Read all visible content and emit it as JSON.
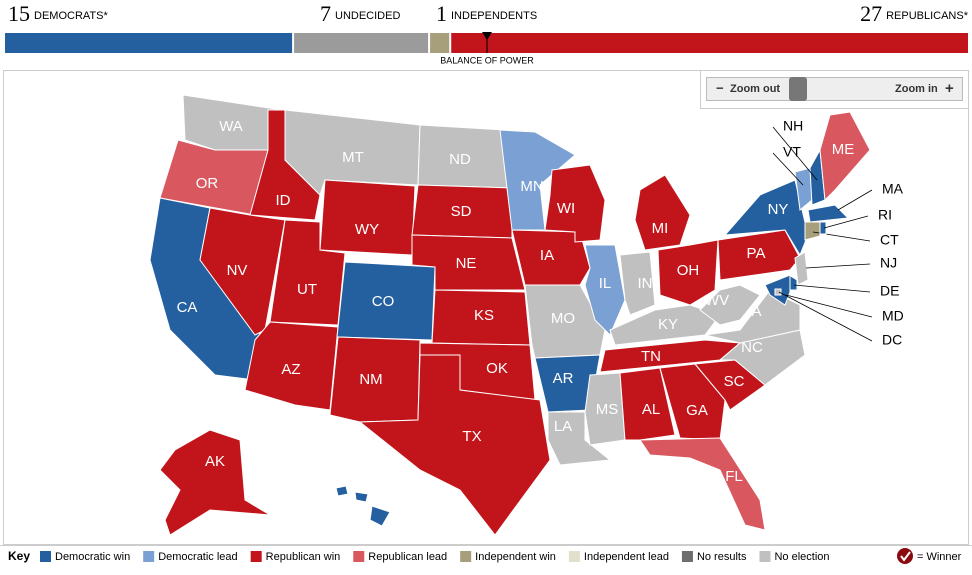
{
  "balance": {
    "groups": [
      {
        "count": 15,
        "label": "DEMOCRATS*",
        "color": "#24609f"
      },
      {
        "count": 7,
        "label": "UNDECIDED",
        "color": "#9b9b9b"
      },
      {
        "count": 1,
        "label": "INDEPENDENTS",
        "color": "#a79f7b"
      },
      {
        "count": 27,
        "label": "REPUBLICANS*",
        "color": "#c2141b"
      }
    ],
    "label": "BALANCE OF POWER"
  },
  "zoom": {
    "out": "Zoom out",
    "in": "Zoom in"
  },
  "states": [
    {
      "abbr": "WA",
      "status": "No election"
    },
    {
      "abbr": "OR",
      "status": "Republican lead"
    },
    {
      "abbr": "CA",
      "status": "Democratic win"
    },
    {
      "abbr": "ID",
      "status": "Republican win"
    },
    {
      "abbr": "NV",
      "status": "Republican win"
    },
    {
      "abbr": "MT",
      "status": "No election"
    },
    {
      "abbr": "WY",
      "status": "Republican win"
    },
    {
      "abbr": "UT",
      "status": "Republican win"
    },
    {
      "abbr": "AZ",
      "status": "Republican win"
    },
    {
      "abbr": "CO",
      "status": "Democratic win"
    },
    {
      "abbr": "NM",
      "status": "Republican win"
    },
    {
      "abbr": "ND",
      "status": "No election"
    },
    {
      "abbr": "SD",
      "status": "Republican win"
    },
    {
      "abbr": "NE",
      "status": "Republican win"
    },
    {
      "abbr": "KS",
      "status": "Republican win"
    },
    {
      "abbr": "OK",
      "status": "Republican win"
    },
    {
      "abbr": "TX",
      "status": "Republican win"
    },
    {
      "abbr": "MN",
      "status": "Democratic lead"
    },
    {
      "abbr": "IA",
      "status": "Republican win"
    },
    {
      "abbr": "MO",
      "status": "No election"
    },
    {
      "abbr": "AR",
      "status": "Democratic win"
    },
    {
      "abbr": "LA",
      "status": "No election"
    },
    {
      "abbr": "WI",
      "status": "Republican win"
    },
    {
      "abbr": "IL",
      "status": "Democratic lead"
    },
    {
      "abbr": "MI",
      "status": "Republican win"
    },
    {
      "abbr": "IN",
      "status": "No election"
    },
    {
      "abbr": "OH",
      "status": "Republican win"
    },
    {
      "abbr": "KY",
      "status": "No election"
    },
    {
      "abbr": "TN",
      "status": "Republican win"
    },
    {
      "abbr": "MS",
      "status": "No election"
    },
    {
      "abbr": "AL",
      "status": "Republican win"
    },
    {
      "abbr": "GA",
      "status": "Republican win"
    },
    {
      "abbr": "FL",
      "status": "Republican lead"
    },
    {
      "abbr": "SC",
      "status": "Republican win"
    },
    {
      "abbr": "NC",
      "status": "No election"
    },
    {
      "abbr": "VA",
      "status": "No election"
    },
    {
      "abbr": "WV",
      "status": "No election"
    },
    {
      "abbr": "PA",
      "status": "Republican win"
    },
    {
      "abbr": "NY",
      "status": "Democratic win"
    },
    {
      "abbr": "NJ",
      "status": "No election"
    },
    {
      "abbr": "DE",
      "status": "Democratic win"
    },
    {
      "abbr": "MD",
      "status": "Democratic win"
    },
    {
      "abbr": "DC",
      "status": "No election"
    },
    {
      "abbr": "VT",
      "status": "Democratic lead"
    },
    {
      "abbr": "NH",
      "status": "Democratic win"
    },
    {
      "abbr": "ME",
      "status": "Republican lead"
    },
    {
      "abbr": "MA",
      "status": "Democratic win"
    },
    {
      "abbr": "CT",
      "status": "Independent win"
    },
    {
      "abbr": "RI",
      "status": "Democratic win"
    },
    {
      "abbr": "AK",
      "status": "Republican win"
    },
    {
      "abbr": "HI",
      "status": "Democratic win"
    }
  ],
  "key": {
    "title": "Key",
    "items": [
      {
        "label": "Democratic win",
        "color": "#24609f"
      },
      {
        "label": "Democratic lead",
        "color": "#7aa0d4"
      },
      {
        "label": "Republican win",
        "color": "#c2141b"
      },
      {
        "label": "Republican lead",
        "color": "#d9575f"
      },
      {
        "label": "Independent win",
        "color": "#a79f7b"
      },
      {
        "label": "Independent lead",
        "color": "#e3dfcd"
      },
      {
        "label": "No results",
        "color": "#6e6e6e"
      },
      {
        "label": "No election",
        "color": "#c0c0c0"
      }
    ],
    "winner": "= Winner"
  }
}
